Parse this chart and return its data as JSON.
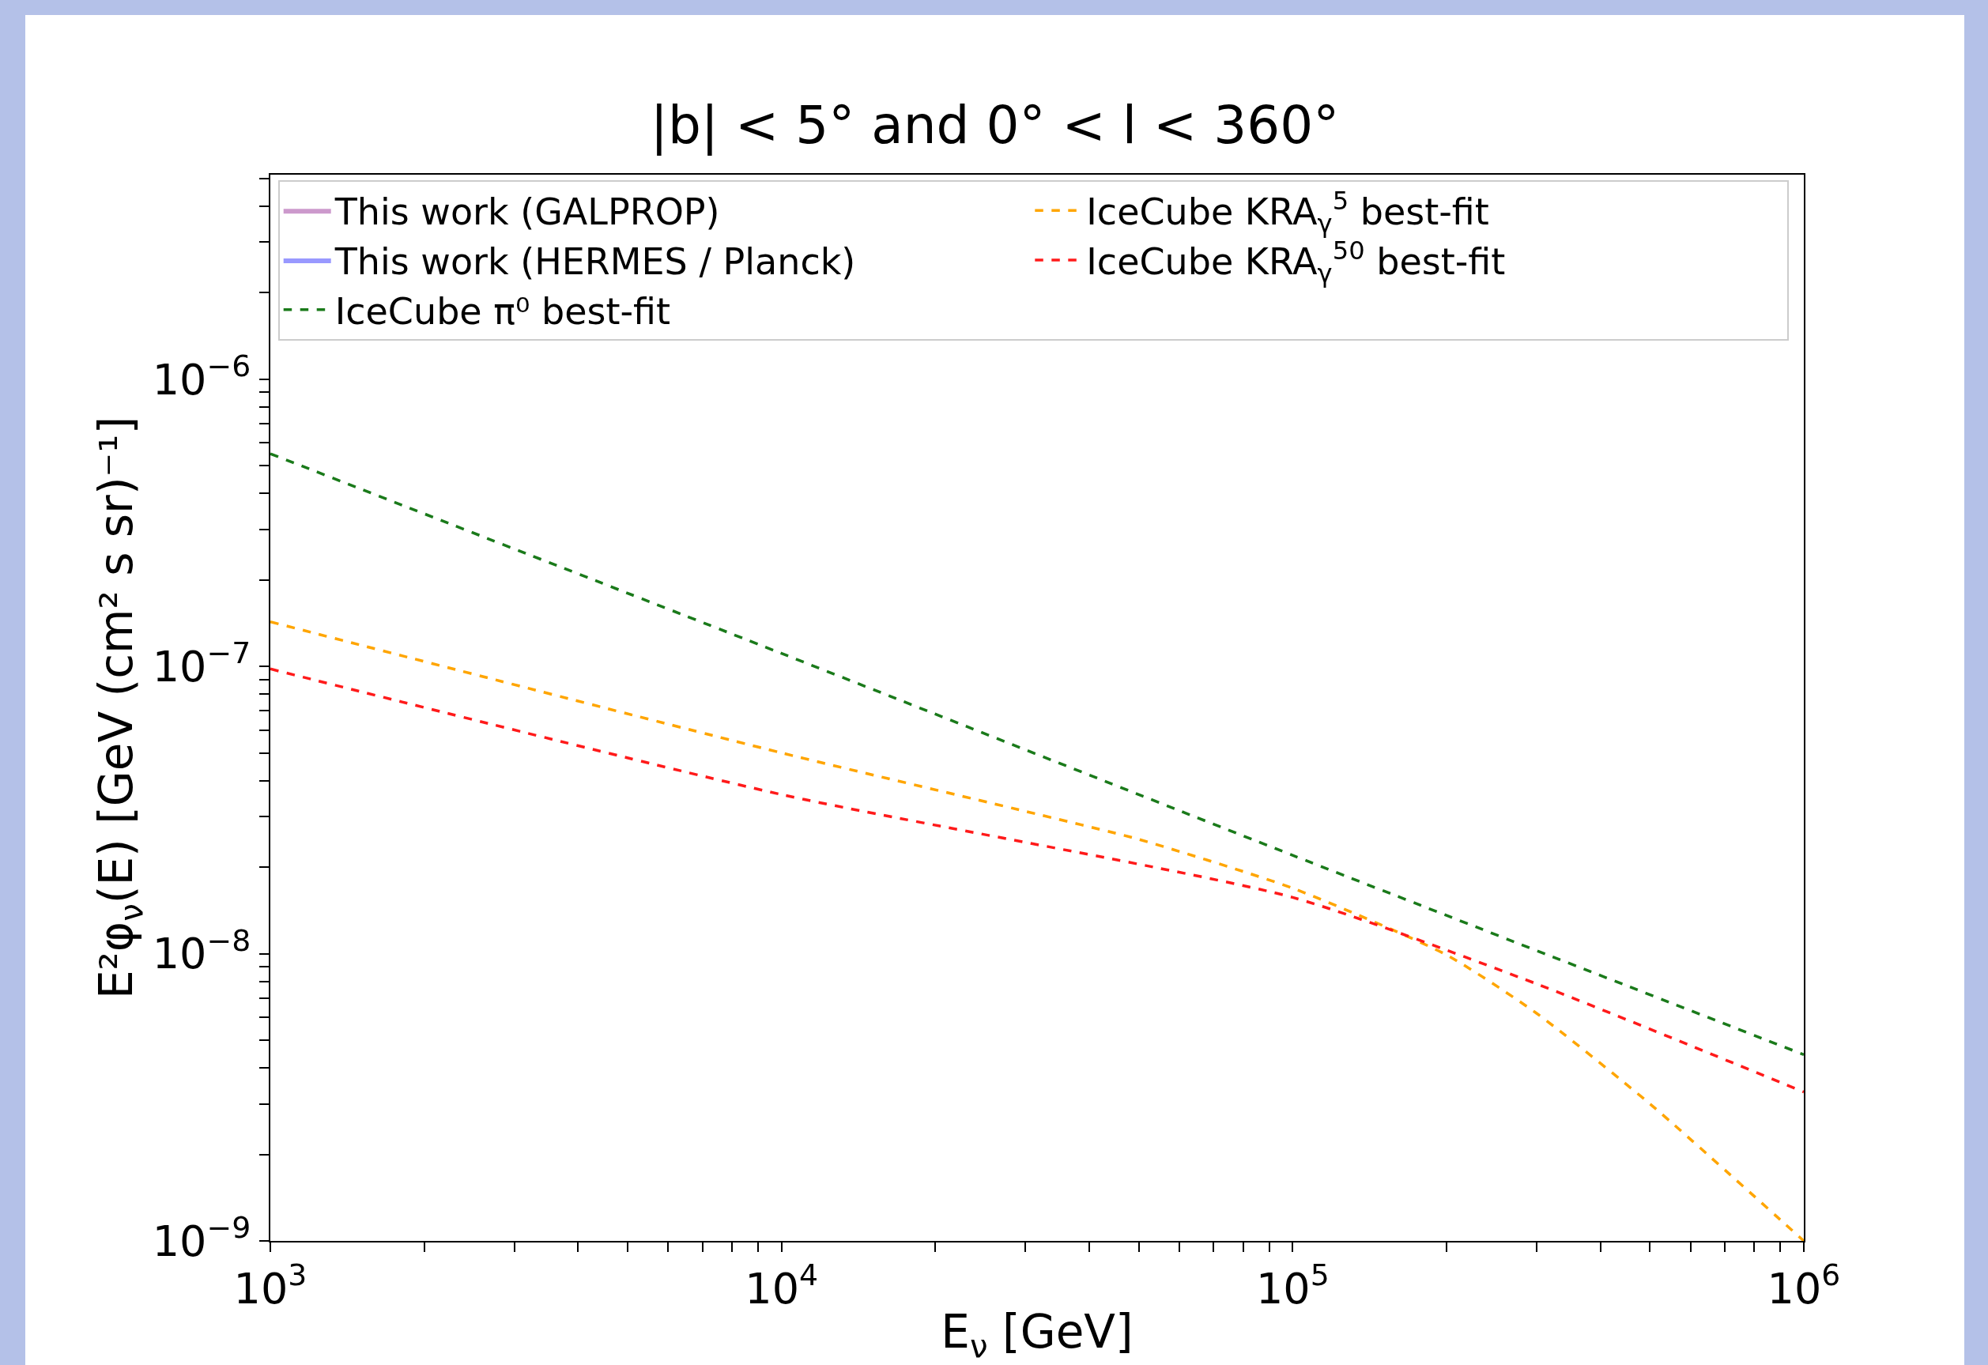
{
  "chart_data": {
    "type": "line",
    "title": "|b| < 5° and 0° < l < 360°",
    "xlabel": "E$_{ν}$ [GeV]",
    "ylabel": "E²φ$_{ν}$(E) [GeV (cm² s sr)⁻¹]",
    "log": "xy",
    "grid": false,
    "legend": "top left",
    "line_style": "dashed",
    "marker": "none",
    "xlim": [
      1000,
      1000000
    ],
    "ylim": [
      1e-09,
      5.15e-06
    ],
    "xticks": [
      {
        "value": 1000,
        "label": "10$^{3}$"
      },
      {
        "value": 2000,
        "label": null
      },
      {
        "value": 3000,
        "label": null
      },
      {
        "value": 4000,
        "label": null
      },
      {
        "value": 5000,
        "label": null
      },
      {
        "value": 6000,
        "label": null
      },
      {
        "value": 7000,
        "label": null
      },
      {
        "value": 8000,
        "label": null
      },
      {
        "value": 9000,
        "label": null
      },
      {
        "value": 10000,
        "label": "10$^{4}$"
      },
      {
        "value": 20000,
        "label": null
      },
      {
        "value": 30000,
        "label": null
      },
      {
        "value": 40000,
        "label": null
      },
      {
        "value": 50000,
        "label": null
      },
      {
        "value": 60000,
        "label": null
      },
      {
        "value": 70000,
        "label": null
      },
      {
        "value": 80000,
        "label": null
      },
      {
        "value": 90000,
        "label": null
      },
      {
        "value": 100000,
        "label": "10$^{5}$"
      },
      {
        "value": 200000,
        "label": null
      },
      {
        "value": 300000,
        "label": null
      },
      {
        "value": 400000,
        "label": null
      },
      {
        "value": 500000,
        "label": null
      },
      {
        "value": 600000,
        "label": null
      },
      {
        "value": 700000,
        "label": null
      },
      {
        "value": 800000,
        "label": null
      },
      {
        "value": 900000,
        "label": null
      },
      {
        "value": 1000000,
        "label": "10$^{6}$"
      }
    ],
    "yticks": [
      {
        "value": 1e-09,
        "label": "10$^{−9}$"
      },
      {
        "value": 2e-09,
        "label": null
      },
      {
        "value": 3e-09,
        "label": null
      },
      {
        "value": 4e-09,
        "label": null
      },
      {
        "value": 5e-09,
        "label": null
      },
      {
        "value": 6e-09,
        "label": null
      },
      {
        "value": 7e-09,
        "label": null
      },
      {
        "value": 8e-09,
        "label": null
      },
      {
        "value": 9e-09,
        "label": null
      },
      {
        "value": 1e-08,
        "label": "10$^{−8}$"
      },
      {
        "value": 2e-08,
        "label": null
      },
      {
        "value": 3e-08,
        "label": null
      },
      {
        "value": 4e-08,
        "label": null
      },
      {
        "value": 5e-08,
        "label": null
      },
      {
        "value": 6e-08,
        "label": null
      },
      {
        "value": 7e-08,
        "label": null
      },
      {
        "value": 8e-08,
        "label": null
      },
      {
        "value": 9e-08,
        "label": null
      },
      {
        "value": 1e-07,
        "label": "10$^{−7}$"
      },
      {
        "value": 2e-07,
        "label": null
      },
      {
        "value": 3e-07,
        "label": null
      },
      {
        "value": 4e-07,
        "label": null
      },
      {
        "value": 5e-07,
        "label": null
      },
      {
        "value": 6e-07,
        "label": null
      },
      {
        "value": 7e-07,
        "label": null
      },
      {
        "value": 8e-07,
        "label": null
      },
      {
        "value": 9e-07,
        "label": null
      },
      {
        "value": 1e-06,
        "label": "10$^{−6}$"
      },
      {
        "value": 2e-06,
        "label": null
      },
      {
        "value": 3e-06,
        "label": null
      },
      {
        "value": 4e-06,
        "label": null
      },
      {
        "value": 5e-06,
        "label": null
      }
    ],
    "x": [
      1000,
      10000,
      100000,
      1000000
    ],
    "series": [
      {
        "name": "This work (GALPROP)",
        "type": "area",
        "color": "#cc99cc",
        "values": [
          null,
          null,
          null,
          null
        ]
      },
      {
        "name": "This work (HERMES / Planck)",
        "type": "area",
        "color": "#9999ff",
        "values": [
          null,
          null,
          null,
          null
        ]
      },
      {
        "name": "IceCube π⁰ best-fit",
        "color": "#1a7a1a",
        "values": [
          5.5e-07,
          1.11e-07,
          2.2e-08,
          4.45e-09
        ]
      },
      {
        "name": "IceCube KRA$_{γ}$$^{5}$ best-fit",
        "color": "#ffa500",
        "x": [
          1000,
          10000,
          30000,
          50000,
          100000,
          200000,
          300000,
          500000,
          1000000
        ],
        "values": [
          1.43e-07,
          5e-08,
          3.13e-08,
          2.5e-08,
          1.69e-08,
          9.9e-09,
          6.2e-09,
          3e-09,
          1e-09
        ]
      },
      {
        "name": "IceCube KRA$_{γ}$$^{50}$ best-fit",
        "color": "#ff1a1a",
        "x": [
          1000,
          10000,
          100000,
          300000,
          1000000
        ],
        "values": [
          9.8e-08,
          3.58e-08,
          1.57e-08,
          7.85e-09,
          3.3e-09
        ]
      }
    ]
  }
}
